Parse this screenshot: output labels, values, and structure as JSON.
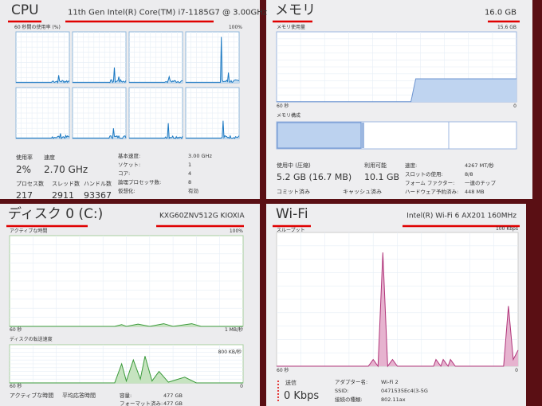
{
  "cpu": {
    "title": "CPU",
    "model": "11th Gen Intel(R) Core(TM) i7-1185G7 @ 3.00GHz",
    "graph_label": "60 秒間の使用率 (%)",
    "graph_max": "100%",
    "stats": [
      {
        "label": "使用率",
        "value": "2%"
      },
      {
        "label": "速度",
        "value": "2.70 GHz"
      },
      {
        "label": "プロセス数",
        "value": "217"
      },
      {
        "label": "スレッド数",
        "value": "2911"
      },
      {
        "label": "ハンドル数",
        "value": "93367"
      }
    ],
    "details": [
      {
        "label": "基本速度:",
        "value": "3.00 GHz"
      },
      {
        "label": "ソケット:",
        "value": "1"
      },
      {
        "label": "コア:",
        "value": "4"
      },
      {
        "label": "論理プロセッサ数:",
        "value": "8"
      },
      {
        "label": "仮想化:",
        "value": "有効"
      }
    ]
  },
  "memory": {
    "title": "メモリ",
    "total": "16.0 GB",
    "graph_label": "メモリ使用量",
    "graph_max": "15.6 GB",
    "time": "60 秒",
    "zero": "0",
    "composition": "メモリ構成",
    "stats": [
      {
        "label": "使用中 (圧縮)",
        "value": "5.2 GB (16.7 MB)"
      },
      {
        "label": "利用可能",
        "value": "10.1 GB"
      }
    ],
    "more": [
      "コミット済み",
      "キャッシュ済み"
    ],
    "details": [
      {
        "label": "速度:",
        "value": "4267 MT/秒"
      },
      {
        "label": "スロットの使用:",
        "value": "8/8"
      },
      {
        "label": "フォーム ファクター:",
        "value": "一連のチップ"
      },
      {
        "label": "ハードウェア予約済み:",
        "value": "448 MB"
      }
    ]
  },
  "disk": {
    "title": "ディスク 0 (C:)",
    "model": "KXG60ZNV512G KIOXIA",
    "graph_label": "アクティブな時間",
    "graph_max": "100%",
    "time": "60 秒",
    "zero": "0",
    "rate_label": "ディスクの転送速度",
    "rate_max": "1 MB/秒",
    "rate_mid": "800 KB/秒",
    "time2": "60 秒",
    "zero2": "0",
    "stats": [
      "アクティブな時間",
      "平均応答時間"
    ],
    "details": [
      {
        "label": "容量:",
        "value": "477 GB"
      },
      {
        "label": "フォーマット済み:",
        "value": "477 GB"
      }
    ]
  },
  "wifi": {
    "title": "Wi-Fi",
    "model": "Intel(R) Wi-Fi 6 AX201 160MHz",
    "graph_label": "スループット",
    "graph_max": "100 Kbps",
    "time": "60 秒",
    "zero": "0",
    "send_label": "送信",
    "send_value": "0 Kbps",
    "details": [
      {
        "label": "アダプター名:",
        "value": "Wi-Fi 2"
      },
      {
        "label": "SSID:",
        "value": "0471535Ec4(3-5G"
      },
      {
        "label": "接続の種類:",
        "value": "802.11ax"
      }
    ]
  }
}
